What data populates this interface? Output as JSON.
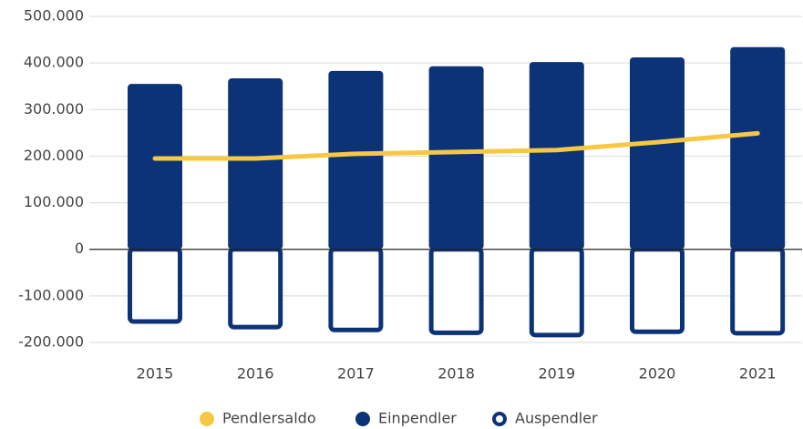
{
  "chart_data": {
    "type": "bar-line",
    "categories": [
      "2015",
      "2016",
      "2017",
      "2018",
      "2019",
      "2020",
      "2021"
    ],
    "series": [
      {
        "name": "Pendlersaldo",
        "type": "line",
        "color": "#f6c844",
        "values": [
          195000,
          195000,
          205000,
          209000,
          213000,
          230000,
          249000
        ]
      },
      {
        "name": "Einpendler",
        "type": "bar",
        "color": "#0c3377",
        "values": [
          355000,
          367000,
          383000,
          393000,
          402000,
          412000,
          434000
        ]
      },
      {
        "name": "Auspendler",
        "type": "bar-outline",
        "color": "#0c3377",
        "values": [
          -160000,
          -172000,
          -178000,
          -184000,
          -189000,
          -182000,
          -185000
        ]
      }
    ],
    "ylim": [
      -200000,
      500000
    ],
    "yticks": [
      {
        "value": -200000,
        "label": "-200.000"
      },
      {
        "value": -100000,
        "label": "-100.000"
      },
      0,
      {
        "value": 100000,
        "label": "100.000"
      },
      {
        "value": 200000,
        "label": "200.000"
      },
      {
        "value": 300000,
        "label": "300.000"
      },
      {
        "value": 400000,
        "label": "400.000"
      },
      {
        "value": 500000,
        "label": "500.000"
      }
    ],
    "grid": true,
    "legend": "bottom"
  }
}
